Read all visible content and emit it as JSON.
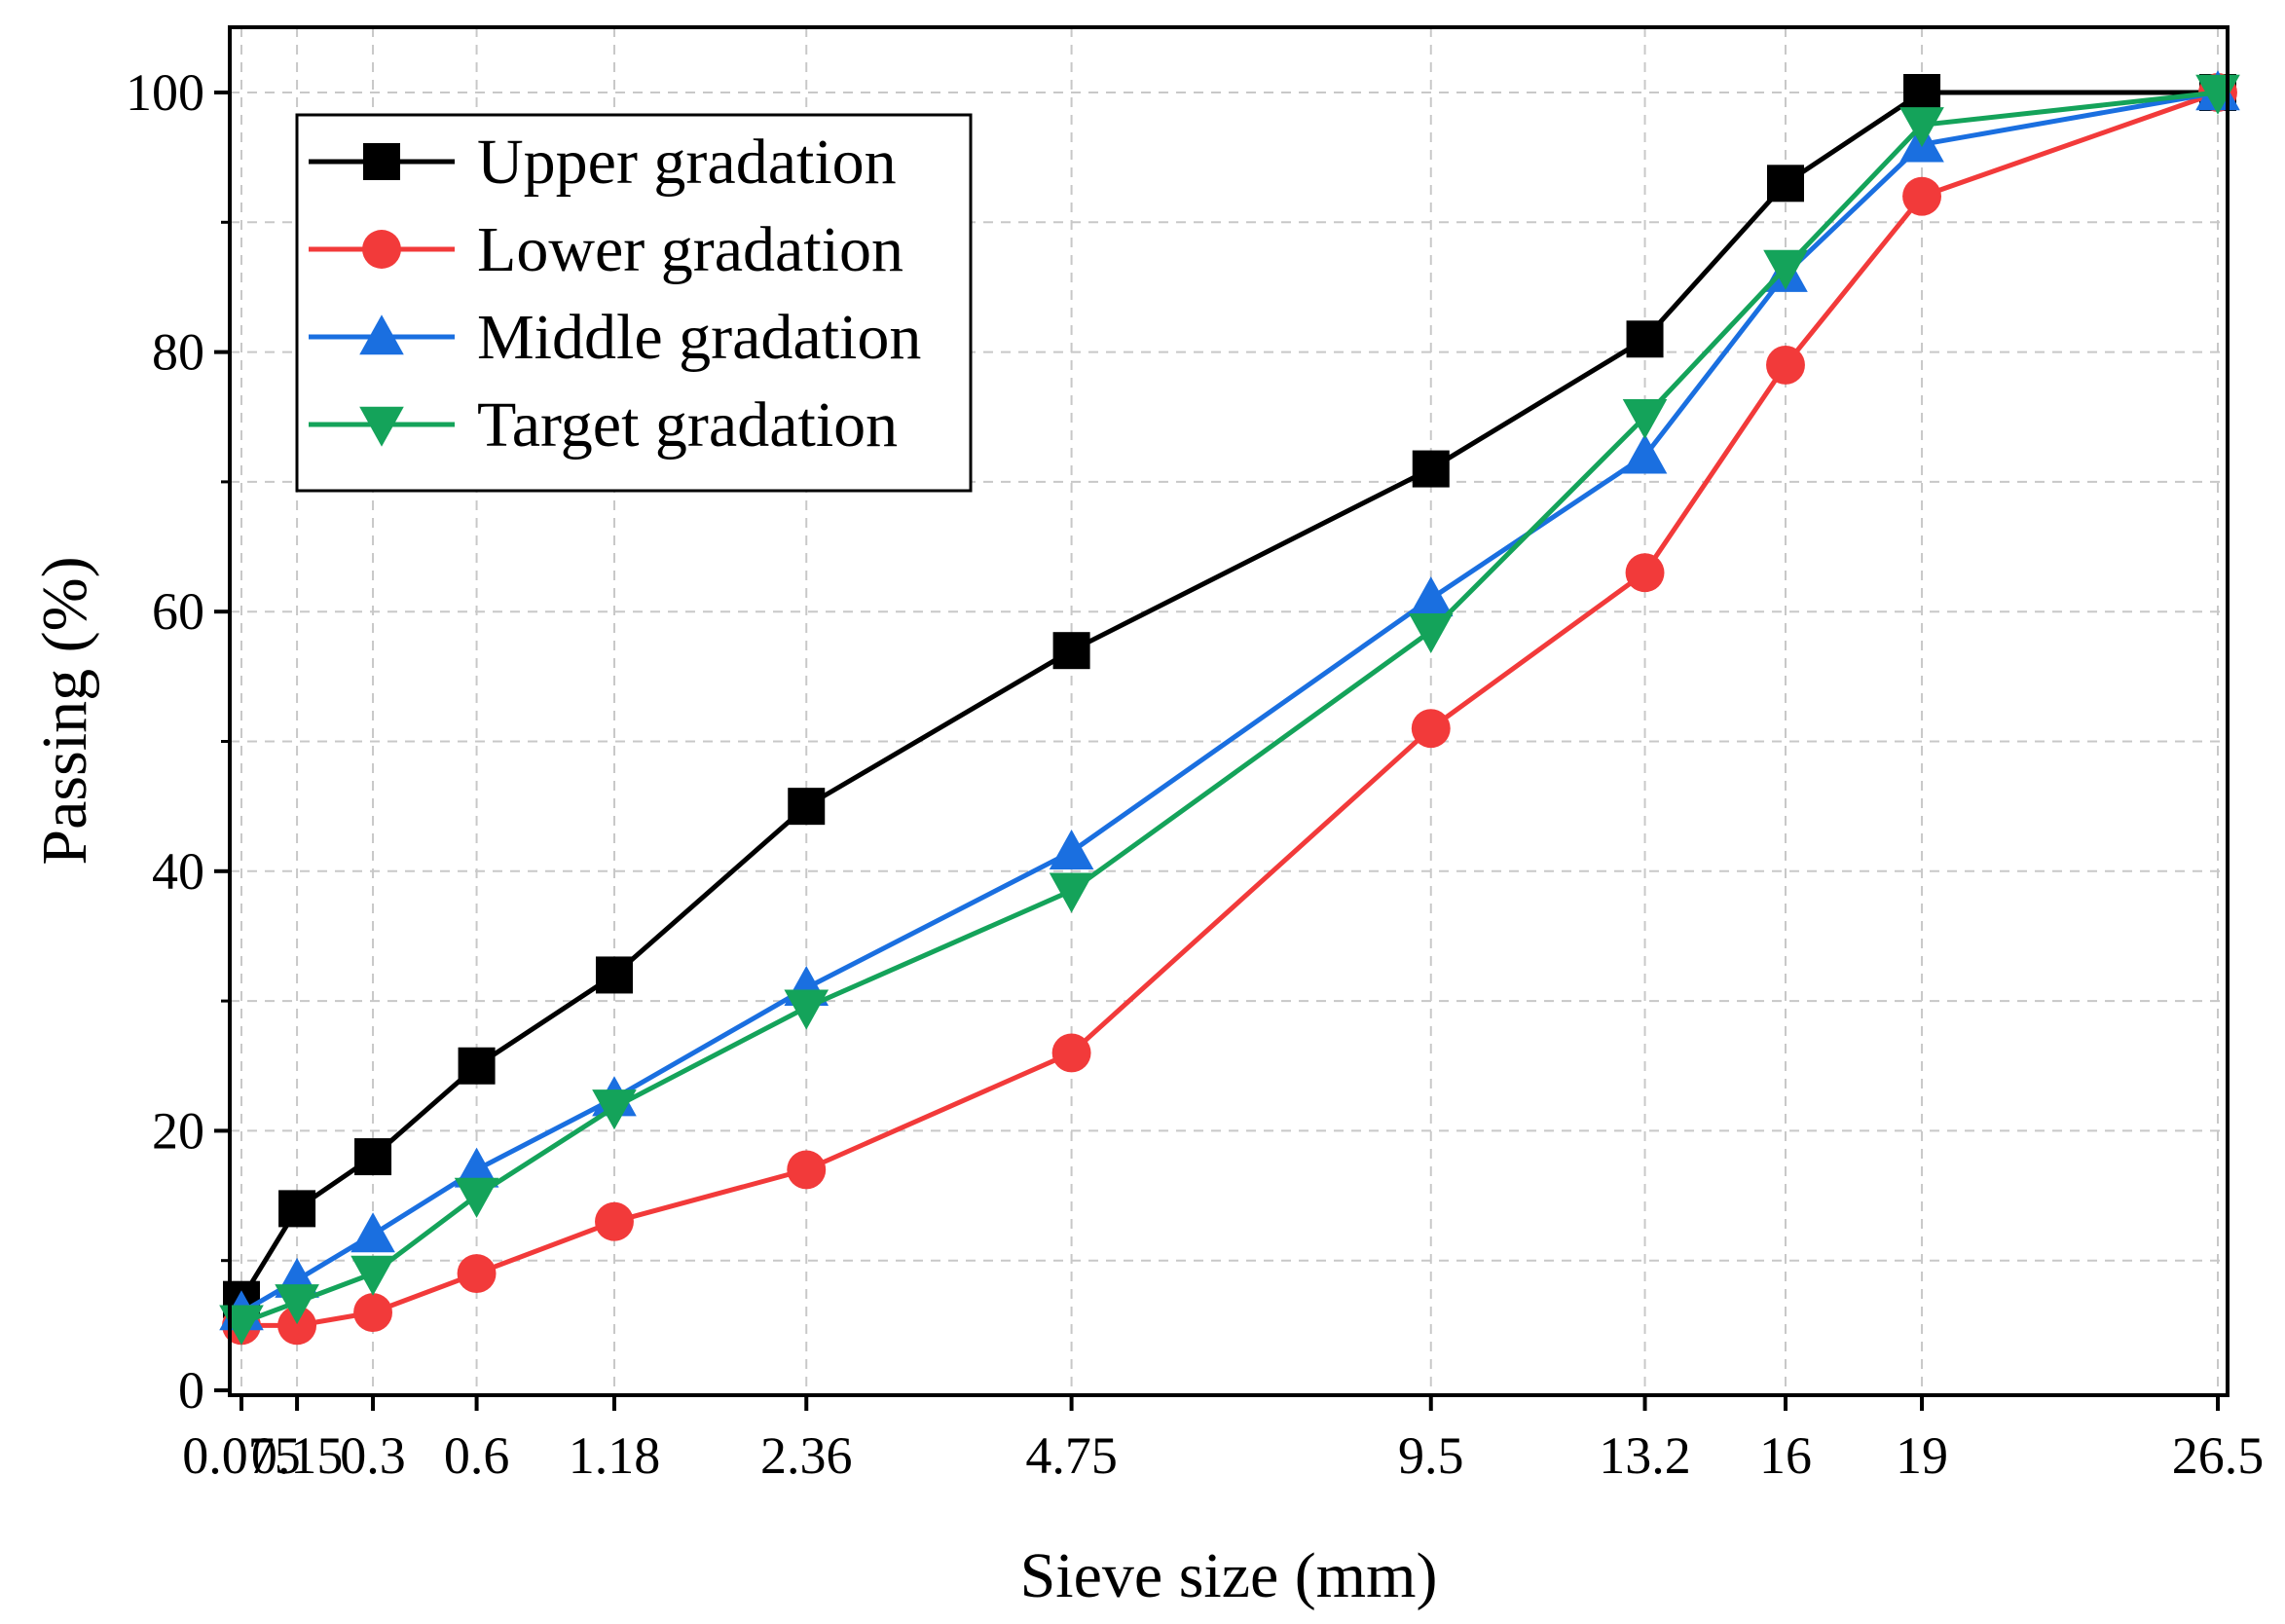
{
  "chart_data": {
    "type": "line",
    "xlabel": "Sieve size (mm)",
    "ylabel": "Passing (%)",
    "ylim": [
      0,
      100
    ],
    "xscale": "power 0.45 (gradation chart)",
    "x_tick_labels": [
      "0.075",
      "0.15",
      "0.3",
      "0.6",
      "1.18",
      "2.36",
      "4.75",
      "9.5",
      "13.2",
      "16",
      "19",
      "26.5"
    ],
    "x": [
      0.075,
      0.15,
      0.3,
      0.6,
      1.18,
      2.36,
      4.75,
      9.5,
      13.2,
      16,
      19,
      26.5
    ],
    "y_ticks": [
      0,
      20,
      40,
      60,
      80,
      100
    ],
    "y_tick_labels": [
      "0",
      "20",
      "40",
      "60",
      "80",
      "100"
    ],
    "grid": true,
    "legend_position": "top-left",
    "series": [
      {
        "name": "Upper gradation",
        "color": "#000000",
        "marker": "square",
        "values": [
          7,
          14,
          18,
          25,
          32,
          45,
          57,
          71,
          81,
          93,
          100,
          100
        ]
      },
      {
        "name": "Lower gradation",
        "color": "#f23a3a",
        "marker": "circle",
        "values": [
          5,
          5,
          6,
          9,
          13,
          17,
          26,
          51,
          63,
          79,
          92,
          100
        ]
      },
      {
        "name": "Middle gradation",
        "color": "#1a6fe0",
        "marker": "triangle-up",
        "values": [
          6,
          8.5,
          12,
          17,
          22.5,
          31,
          41.5,
          61,
          72,
          86,
          96,
          100
        ]
      },
      {
        "name": "Target gradation",
        "color": "#14a35a",
        "marker": "triangle-down",
        "values": [
          5.2,
          6.8,
          9,
          15,
          21.8,
          29.5,
          38.5,
          58.5,
          75,
          86.5,
          97.5,
          100
        ]
      }
    ]
  }
}
